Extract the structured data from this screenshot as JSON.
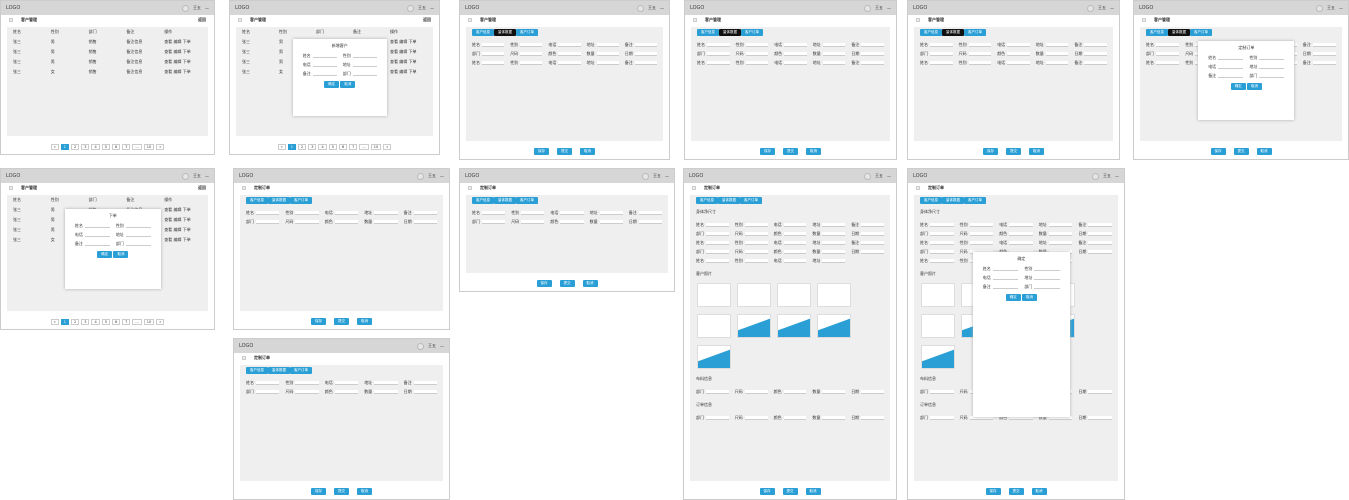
{
  "header": {
    "logo": "LOGO",
    "user": "王五",
    "menu_icon": "minus-icon",
    "bell_icon": "circle-icon"
  },
  "titles": {
    "customers": "客户管理",
    "add": "新增客户",
    "order": "定制订单",
    "back": "返回",
    "place_order": "下单"
  },
  "table": {
    "headers": [
      "姓名",
      "性别",
      "部门",
      "备注",
      "操作"
    ],
    "rows": [
      [
        "张三",
        "男",
        "销售",
        "备注信息"
      ],
      [
        "张三",
        "男",
        "销售",
        "备注信息"
      ],
      [
        "张三",
        "男",
        "销售",
        "备注信息"
      ],
      [
        "张三",
        "女",
        "销售",
        "备注信息"
      ]
    ],
    "actions": [
      "查看",
      "编辑",
      "下单"
    ]
  },
  "pagination": [
    "«",
    "1",
    "2",
    "3",
    "4",
    "5",
    "6",
    "7",
    "...",
    "10",
    "»"
  ],
  "form": {
    "labels": [
      "姓名",
      "性别",
      "电话",
      "地址",
      "备注",
      "部门",
      "尺码",
      "颜色",
      "数量",
      "日期"
    ],
    "value": "张三"
  },
  "tabs": [
    "客户信息",
    "量体数据",
    "客户订单"
  ],
  "buttons": {
    "save": "保存",
    "cancel": "取消",
    "submit": "提交",
    "confirm": "确定"
  },
  "sections": [
    "身体净尺寸",
    "客户照片",
    "布料信息",
    "订单信息"
  ],
  "colors": {
    "accent": "#2a9fd6",
    "header": "#d6d6d6",
    "content": "#efefef"
  }
}
